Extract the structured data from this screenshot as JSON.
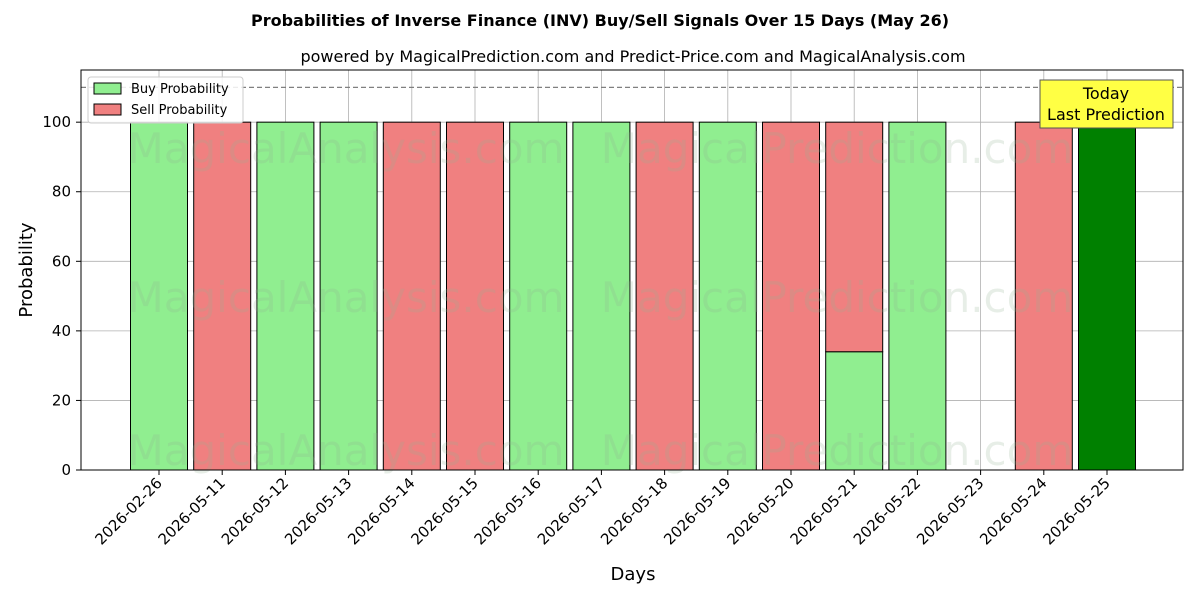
{
  "chart_data": {
    "type": "bar",
    "title": "Probabilities of Inverse Finance (INV) Buy/Sell Signals Over 15 Days (May 26)",
    "subtitle": "powered by MagicalPrediction.com and Predict-Price.com and MagicalAnalysis.com",
    "xlabel": "Days",
    "ylabel": "Probability",
    "ylim": [
      0,
      115
    ],
    "yticks": [
      0,
      20,
      40,
      60,
      80,
      100
    ],
    "grid": true,
    "reference_line": 110,
    "legend_position": "top-left",
    "categories": [
      "2026-02-26",
      "2026-05-11",
      "2026-05-12",
      "2026-05-13",
      "2026-05-14",
      "2026-05-15",
      "2026-05-16",
      "2026-05-17",
      "2026-05-18",
      "2026-05-19",
      "2026-05-20",
      "2026-05-21",
      "2026-05-22",
      "2026-05-23",
      "2026-05-24",
      "2026-05-25"
    ],
    "series": [
      {
        "name": "Buy Probability",
        "color": "#90ee90",
        "values": [
          100,
          0,
          100,
          100,
          0,
          0,
          100,
          100,
          0,
          100,
          0,
          34,
          100,
          0,
          0,
          100
        ]
      },
      {
        "name": "Sell Probability",
        "color": "#f08080",
        "values": [
          0,
          100,
          0,
          0,
          100,
          100,
          0,
          0,
          100,
          0,
          100,
          66,
          0,
          0,
          100,
          0
        ]
      }
    ],
    "highlight": {
      "category": "2026-05-25",
      "color": "#008000"
    },
    "annotation": {
      "line1": "Today",
      "line2": "Last Prediction"
    },
    "watermarks": [
      "MagicalAnalysis.com",
      "MagicalPrediction.com"
    ]
  }
}
